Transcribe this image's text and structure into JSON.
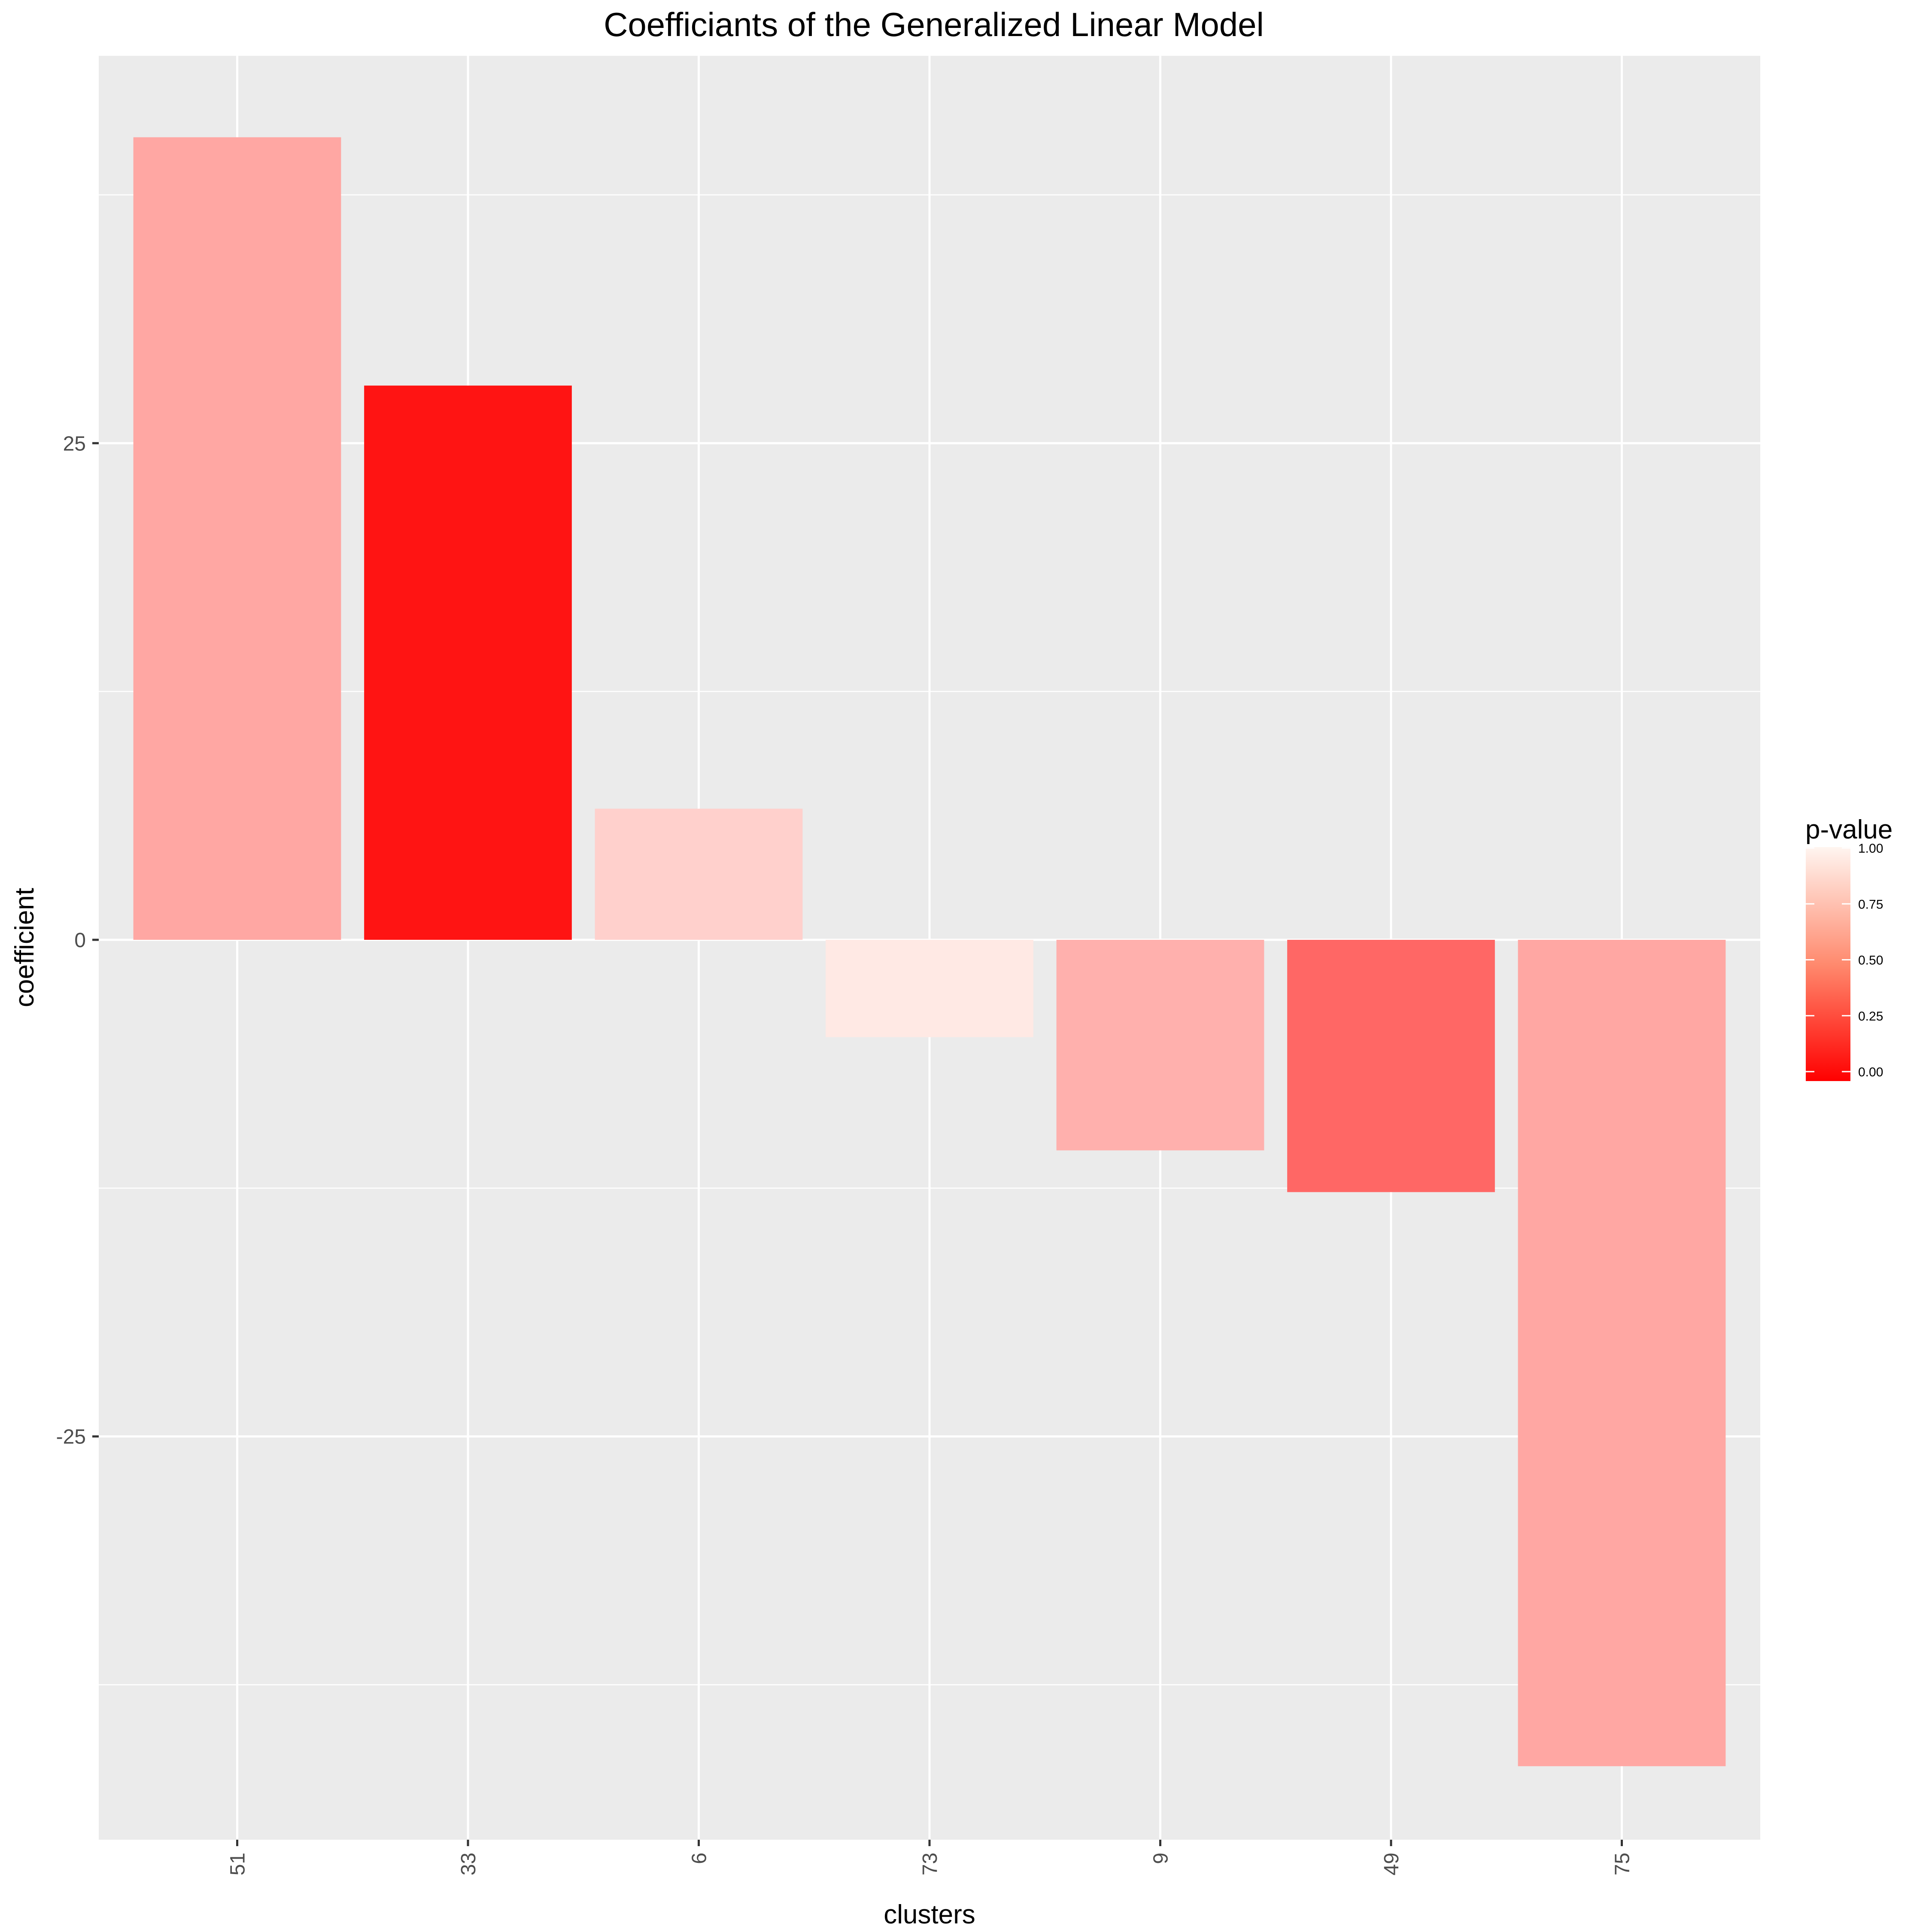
{
  "chart_data": {
    "type": "bar",
    "title": "Coefficiants of the Generalized Linear Model",
    "xlabel": "clusters",
    "ylabel": "coefficient",
    "categories": [
      "51",
      "33",
      "6",
      "73",
      "9",
      "49",
      "75"
    ],
    "values": [
      40.4,
      27.9,
      6.6,
      -4.9,
      -10.6,
      -12.7,
      -41.6
    ],
    "p_values": [
      0.68,
      0.08,
      0.85,
      0.95,
      0.72,
      0.42,
      0.68
    ],
    "ylim": [
      -45.3,
      44.5
    ],
    "y_ticks": [
      25,
      0,
      -25
    ],
    "y_tick_labels": [
      "25",
      "0",
      "-25"
    ],
    "grid": true,
    "legend": {
      "title": "p-value",
      "position": "right",
      "tick_values": [
        1.0,
        0.75,
        0.5,
        0.25,
        0.0
      ],
      "tick_labels": [
        "1.00",
        "0.75",
        "0.50",
        "0.25",
        "0.00"
      ],
      "low_color": "#ff0000",
      "high_color": "#fff5f0"
    },
    "colors": {
      "panel": "#ebebeb",
      "grid": "#ffffff",
      "axis_text": "#4d4d4d",
      "title_text": "#000000"
    }
  }
}
